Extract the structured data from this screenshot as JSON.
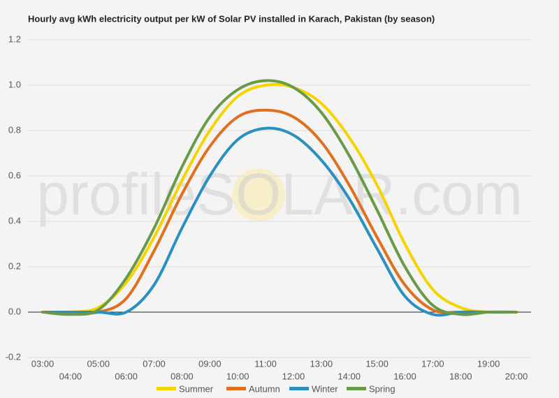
{
  "chart_data": {
    "type": "line",
    "title": "Hourly avg kWh electricity output per kW of Solar PV installed in Karach, Pakistan (by season)",
    "watermark": "profileSOLAR.com",
    "categories": [
      "03:00",
      "04:00",
      "05:00",
      "06:00",
      "07:00",
      "08:00",
      "09:00",
      "10:00",
      "11:00",
      "12:00",
      "13:00",
      "14:00",
      "15:00",
      "16:00",
      "17:00",
      "18:00",
      "19:00",
      "20:00"
    ],
    "series": [
      {
        "name": "Summer",
        "color": "#f5d400",
        "values": [
          0,
          0,
          0.02,
          0.13,
          0.33,
          0.58,
          0.8,
          0.95,
          1.0,
          0.99,
          0.92,
          0.77,
          0.56,
          0.3,
          0.1,
          0.02,
          0,
          0
        ]
      },
      {
        "name": "Autumn",
        "color": "#e07020",
        "values": [
          0,
          0,
          0,
          0.06,
          0.27,
          0.52,
          0.73,
          0.86,
          0.89,
          0.86,
          0.75,
          0.56,
          0.33,
          0.12,
          0.01,
          0,
          0,
          0
        ]
      },
      {
        "name": "Winter",
        "color": "#2a90c0",
        "values": [
          0,
          0,
          0,
          0,
          0.12,
          0.37,
          0.6,
          0.76,
          0.81,
          0.78,
          0.67,
          0.5,
          0.28,
          0.07,
          -0.01,
          0,
          0,
          0
        ]
      },
      {
        "name": "Spring",
        "color": "#6a9a48",
        "values": [
          0,
          -0.01,
          0.01,
          0.15,
          0.37,
          0.64,
          0.86,
          0.98,
          1.02,
          0.99,
          0.88,
          0.69,
          0.45,
          0.2,
          0.03,
          -0.01,
          0,
          0
        ]
      }
    ],
    "ylim": [
      -0.2,
      1.2
    ],
    "yticks": [
      -0.2,
      0.0,
      0.2,
      0.4,
      0.6,
      0.8,
      1.0,
      1.2
    ],
    "grid": true
  }
}
